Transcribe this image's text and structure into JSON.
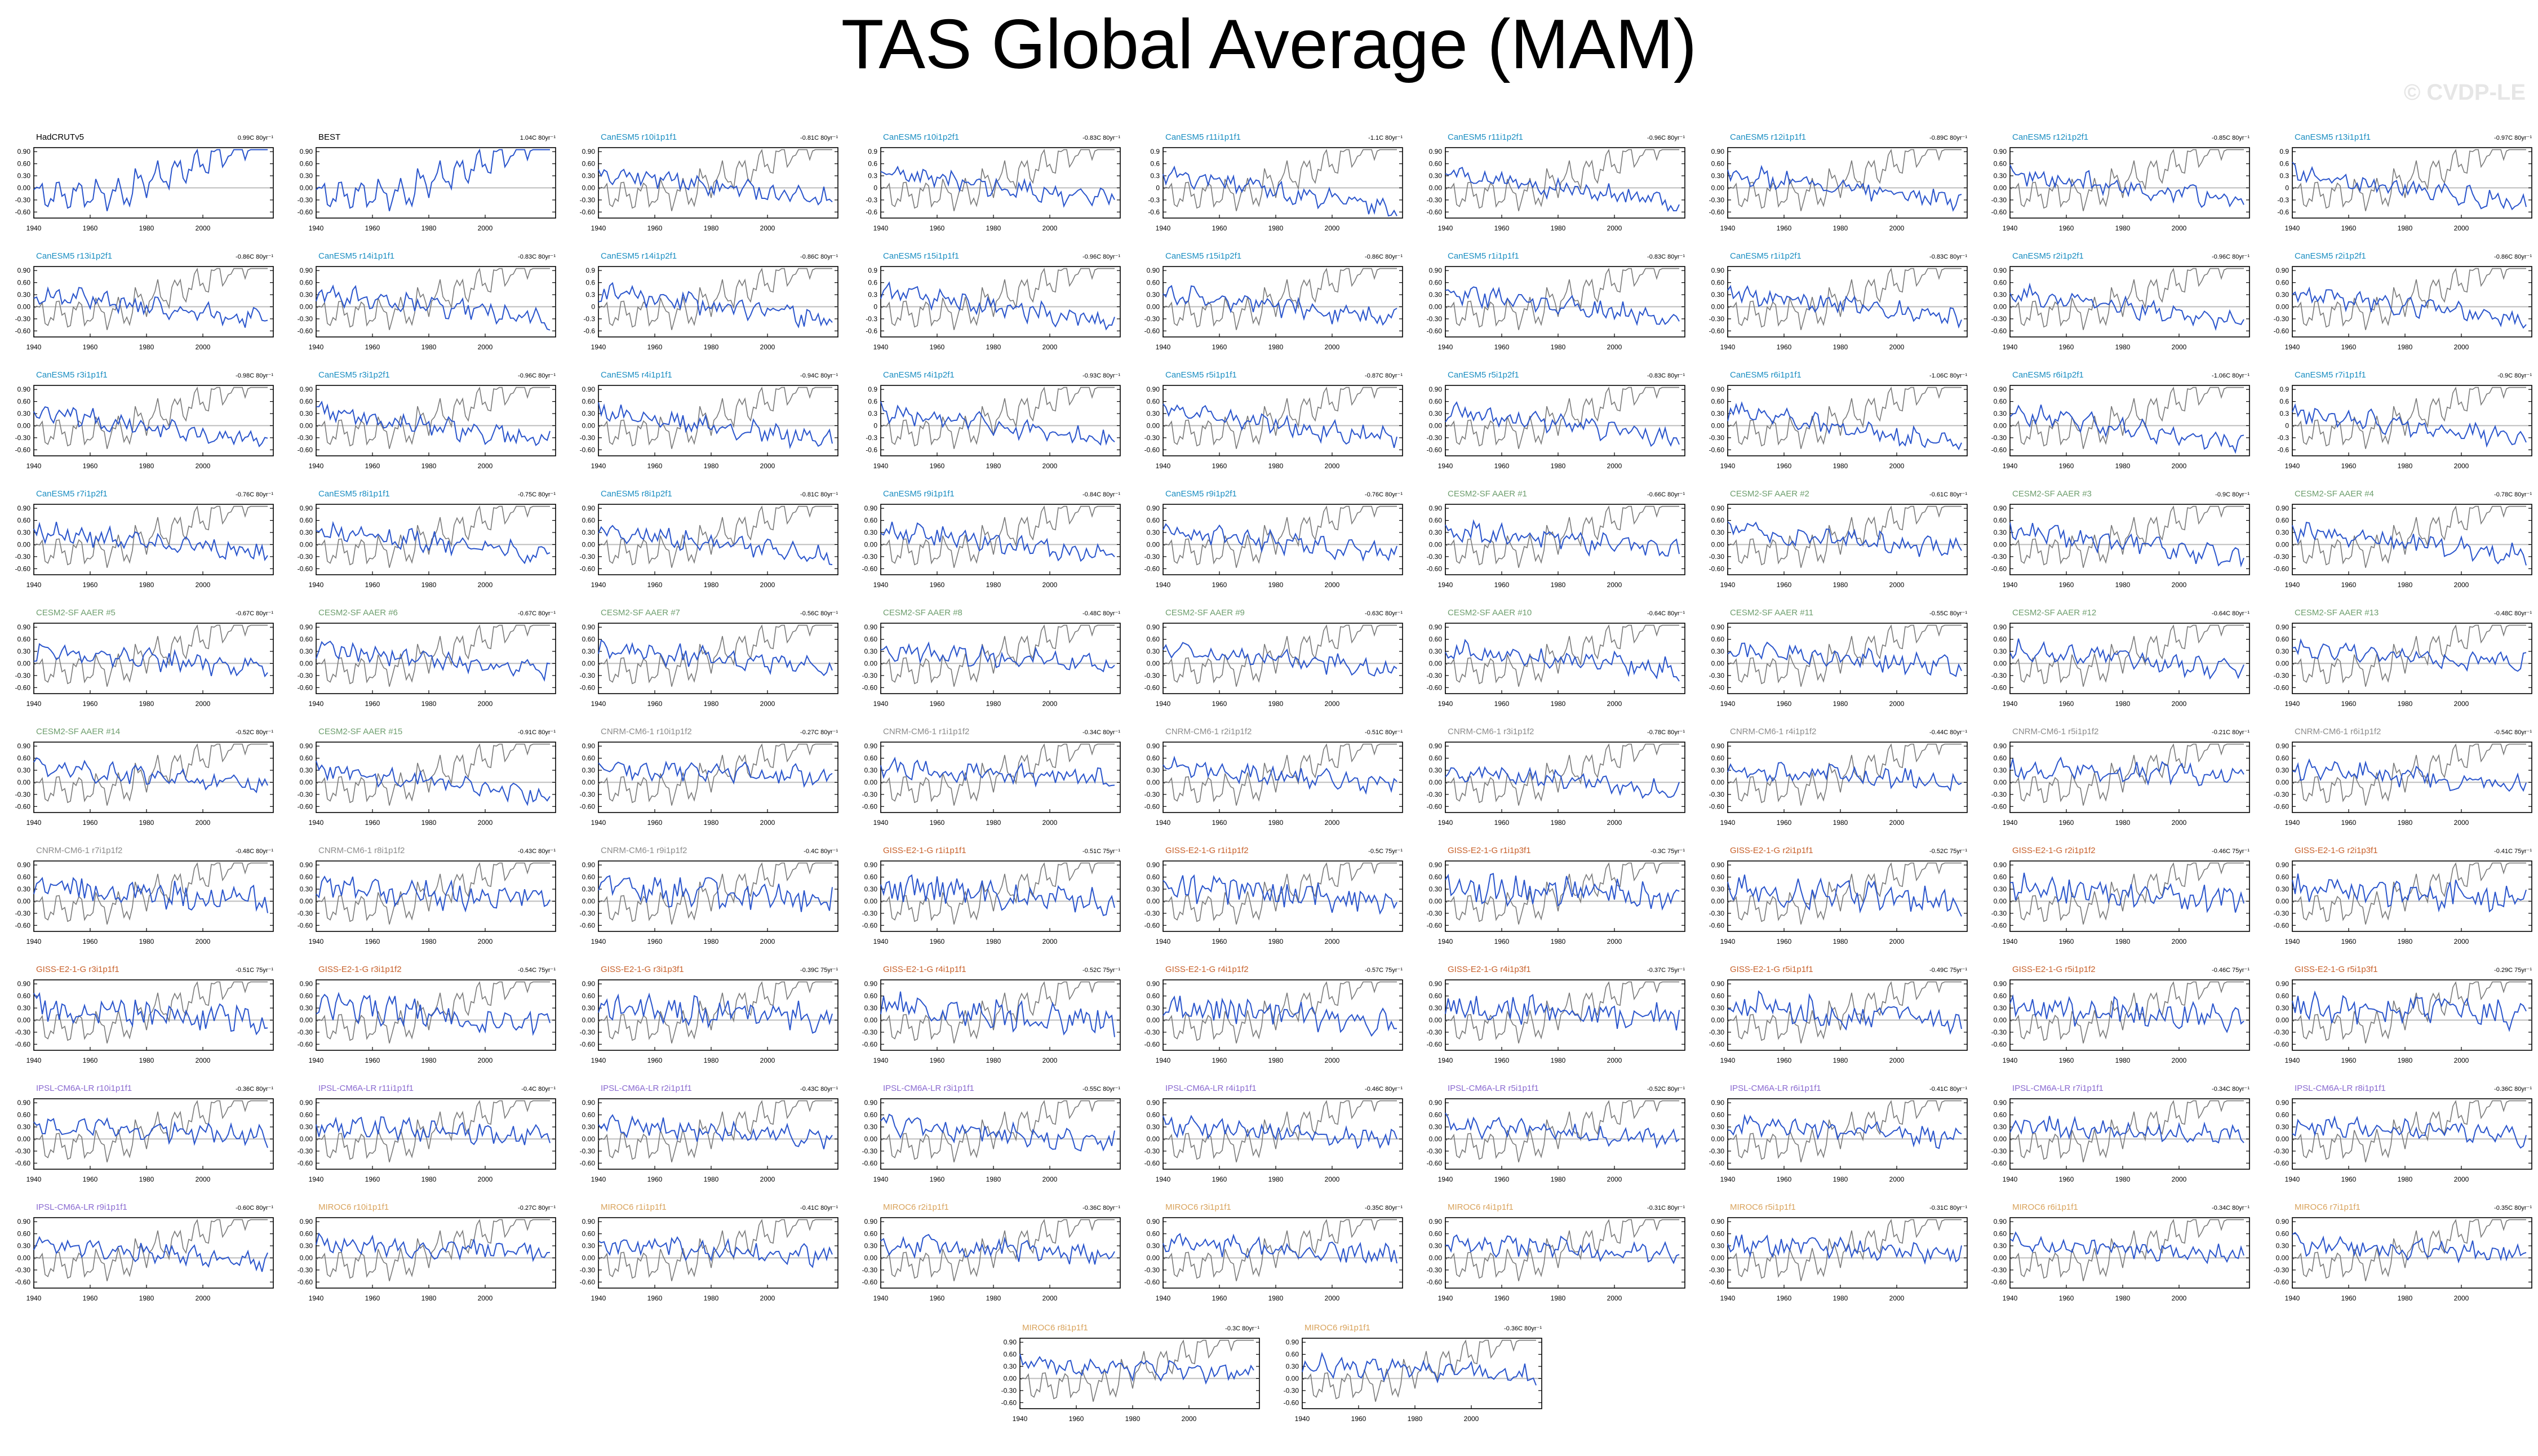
{
  "title": "TAS Global Average (MAM)",
  "watermark": "© CVDP-LE",
  "colors": {
    "background": "#ffffff",
    "model_line": "#2a55cc",
    "obs_line": "#7a7a7a",
    "zero_line": "#bdbdbd",
    "frame": "#000000"
  },
  "chart_data": {
    "type": "line",
    "chart_kind": "small-multiples time series",
    "xlim": [
      1940,
      2025
    ],
    "x_ticks": [
      1940,
      1960,
      1980,
      2000
    ],
    "y_ticks_default": [
      "0.90",
      "0.60",
      "0.30",
      "0.00",
      "-0.30",
      "-0.60"
    ],
    "y_ticks_alt": [
      "0.9",
      "0.6",
      "0.3",
      "0",
      "-0.3",
      "-0.6"
    ],
    "ylim": [
      -0.75,
      1.0
    ],
    "grid": false,
    "series": [
      "reference observed anomaly (gray)",
      "member anomaly (blue)"
    ],
    "panels": [
      {
        "label": "HadCRUTv5",
        "trend": "0.99C 80yr⁻¹",
        "color": "#000000",
        "obs_only": true
      },
      {
        "label": "BEST",
        "trend": "1.04C 80yr⁻¹",
        "color": "#000000",
        "obs_only": true
      },
      {
        "label": "CanESM5 r10i1p1f1",
        "trend": "-0.81C 80yr⁻¹",
        "color": "#1b8ec2"
      },
      {
        "label": "CanESM5 r10i1p2f1",
        "trend": "-0.83C 80yr⁻¹",
        "color": "#1b8ec2",
        "alt": true
      },
      {
        "label": "CanESM5 r11i1p1f1",
        "trend": "-1.1C 80yr⁻¹",
        "color": "#1b8ec2",
        "alt": true
      },
      {
        "label": "CanESM5 r11i1p2f1",
        "trend": "-0.96C 80yr⁻¹",
        "color": "#1b8ec2"
      },
      {
        "label": "CanESM5 r12i1p1f1",
        "trend": "-0.89C 80yr⁻¹",
        "color": "#1b8ec2"
      },
      {
        "label": "CanESM5 r12i1p2f1",
        "trend": "-0.85C 80yr⁻¹",
        "color": "#1b8ec2"
      },
      {
        "label": "CanESM5 r13i1p1f1",
        "trend": "-0.97C 80yr⁻¹",
        "color": "#1b8ec2",
        "alt": true
      },
      {
        "label": "CanESM5 r13i1p2f1",
        "trend": "-0.86C 80yr⁻¹",
        "color": "#1b8ec2"
      },
      {
        "label": "CanESM5 r14i1p1f1",
        "trend": "-0.83C 80yr⁻¹",
        "color": "#1b8ec2"
      },
      {
        "label": "CanESM5 r14i1p2f1",
        "trend": "-0.86C 80yr⁻¹",
        "color": "#1b8ec2",
        "alt": true
      },
      {
        "label": "CanESM5 r15i1p1f1",
        "trend": "-0.96C 80yr⁻¹",
        "color": "#1b8ec2",
        "alt": true
      },
      {
        "label": "CanESM5 r15i1p2f1",
        "trend": "-0.86C 80yr⁻¹",
        "color": "#1b8ec2"
      },
      {
        "label": "CanESM5 r1i1p1f1",
        "trend": "-0.83C 80yr⁻¹",
        "color": "#1b8ec2"
      },
      {
        "label": "CanESM5 r1i1p2f1",
        "trend": "-0.83C 80yr⁻¹",
        "color": "#1b8ec2"
      },
      {
        "label": "CanESM5 r2i1p2f1",
        "trend": "-0.96C 80yr⁻¹",
        "color": "#1b8ec2"
      },
      {
        "label": "CanESM5 r2i1p2f1",
        "trend": "-0.86C 80yr⁻¹",
        "color": "#1b8ec2"
      },
      {
        "label": "CanESM5 r3i1p1f1",
        "trend": "-0.98C 80yr⁻¹",
        "color": "#1b8ec2"
      },
      {
        "label": "CanESM5 r3i1p2f1",
        "trend": "-0.96C 80yr⁻¹",
        "color": "#1b8ec2"
      },
      {
        "label": "CanESM5 r4i1p1f1",
        "trend": "-0.94C 80yr⁻¹",
        "color": "#1b8ec2"
      },
      {
        "label": "CanESM5 r4i1p2f1",
        "trend": "-0.93C 80yr⁻¹",
        "color": "#1b8ec2",
        "alt": true
      },
      {
        "label": "CanESM5 r5i1p1f1",
        "trend": "-0.87C 80yr⁻¹",
        "color": "#1b8ec2"
      },
      {
        "label": "CanESM5 r5i1p2f1",
        "trend": "-0.83C 80yr⁻¹",
        "color": "#1b8ec2"
      },
      {
        "label": "CanESM5 r6i1p1f1",
        "trend": "-1.06C 80yr⁻¹",
        "color": "#1b8ec2"
      },
      {
        "label": "CanESM5 r6i1p2f1",
        "trend": "-1.06C 80yr⁻¹",
        "color": "#1b8ec2"
      },
      {
        "label": "CanESM5 r7i1p1f1",
        "trend": "-0.9C 80yr⁻¹",
        "color": "#1b8ec2",
        "alt": true
      },
      {
        "label": "CanESM5 r7i1p2f1",
        "trend": "-0.76C 80yr⁻¹",
        "color": "#1b8ec2"
      },
      {
        "label": "CanESM5 r8i1p1f1",
        "trend": "-0.75C 80yr⁻¹",
        "color": "#1b8ec2"
      },
      {
        "label": "CanESM5 r8i1p2f1",
        "trend": "-0.81C 80yr⁻¹",
        "color": "#1b8ec2"
      },
      {
        "label": "CanESM5 r9i1p1f1",
        "trend": "-0.84C 80yr⁻¹",
        "color": "#1b8ec2"
      },
      {
        "label": "CanESM5 r9i1p2f1",
        "trend": "-0.76C 80yr⁻¹",
        "color": "#1b8ec2"
      },
      {
        "label": "CESM2-SF AAER #1",
        "trend": "-0.66C 80yr⁻¹",
        "color": "#6e9e6e"
      },
      {
        "label": "CESM2-SF AAER #2",
        "trend": "-0.61C 80yr⁻¹",
        "color": "#6e9e6e"
      },
      {
        "label": "CESM2-SF AAER #3",
        "trend": "-0.9C 80yr⁻¹",
        "color": "#6e9e6e"
      },
      {
        "label": "CESM2-SF AAER #4",
        "trend": "-0.78C 80yr⁻¹",
        "color": "#6e9e6e"
      },
      {
        "label": "CESM2-SF AAER #5",
        "trend": "-0.67C 80yr⁻¹",
        "color": "#6e9e6e"
      },
      {
        "label": "CESM2-SF AAER #6",
        "trend": "-0.67C 80yr⁻¹",
        "color": "#6e9e6e"
      },
      {
        "label": "CESM2-SF AAER #7",
        "trend": "-0.56C 80yr⁻¹",
        "color": "#6e9e6e"
      },
      {
        "label": "CESM2-SF AAER #8",
        "trend": "-0.48C 80yr⁻¹",
        "color": "#6e9e6e"
      },
      {
        "label": "CESM2-SF AAER #9",
        "trend": "-0.63C 80yr⁻¹",
        "color": "#6e9e6e"
      },
      {
        "label": "CESM2-SF AAER #10",
        "trend": "-0.64C 80yr⁻¹",
        "color": "#6e9e6e"
      },
      {
        "label": "CESM2-SF AAER #11",
        "trend": "-0.55C 80yr⁻¹",
        "color": "#6e9e6e"
      },
      {
        "label": "CESM2-SF AAER #12",
        "trend": "-0.64C 80yr⁻¹",
        "color": "#6e9e6e"
      },
      {
        "label": "CESM2-SF AAER #13",
        "trend": "-0.48C 80yr⁻¹",
        "color": "#6e9e6e"
      },
      {
        "label": "CESM2-SF AAER #14",
        "trend": "-0.52C 80yr⁻¹",
        "color": "#6e9e6e"
      },
      {
        "label": "CESM2-SF AAER #15",
        "trend": "-0.91C 80yr⁻¹",
        "color": "#6e9e6e"
      },
      {
        "label": "CNRM-CM6-1 r10i1p1f2",
        "trend": "-0.27C 80yr⁻¹",
        "color": "#8c8c8c"
      },
      {
        "label": "CNRM-CM6-1 r1i1p1f2",
        "trend": "-0.34C 80yr⁻¹",
        "color": "#8c8c8c"
      },
      {
        "label": "CNRM-CM6-1 r2i1p1f2",
        "trend": "-0.51C 80yr⁻¹",
        "color": "#8c8c8c"
      },
      {
        "label": "CNRM-CM6-1 r3i1p1f2",
        "trend": "-0.78C 80yr⁻¹",
        "color": "#8c8c8c"
      },
      {
        "label": "CNRM-CM6-1 r4i1p1f2",
        "trend": "-0.44C 80yr⁻¹",
        "color": "#8c8c8c"
      },
      {
        "label": "CNRM-CM6-1 r5i1p1f2",
        "trend": "-0.21C 80yr⁻¹",
        "color": "#8c8c8c"
      },
      {
        "label": "CNRM-CM6-1 r6i1p1f2",
        "trend": "-0.54C 80yr⁻¹",
        "color": "#8c8c8c"
      },
      {
        "label": "CNRM-CM6-1 r7i1p1f2",
        "trend": "-0.48C 80yr⁻¹",
        "color": "#8c8c8c"
      },
      {
        "label": "CNRM-CM6-1 r8i1p1f2",
        "trend": "-0.43C 80yr⁻¹",
        "color": "#8c8c8c"
      },
      {
        "label": "CNRM-CM6-1 r9i1p1f2",
        "trend": "-0.4C 80yr⁻¹",
        "color": "#8c8c8c"
      },
      {
        "label": "GISS-E2-1-G r1i1p1f1",
        "trend": "-0.51C 75yr⁻¹",
        "color": "#c8602a"
      },
      {
        "label": "GISS-E2-1-G r1i1p1f2",
        "trend": "-0.5C 75yr⁻¹",
        "color": "#c8602a"
      },
      {
        "label": "GISS-E2-1-G r1i1p3f1",
        "trend": "-0.3C 75yr⁻¹",
        "color": "#c8602a"
      },
      {
        "label": "GISS-E2-1-G r2i1p1f1",
        "trend": "-0.52C 75yr⁻¹",
        "color": "#c8602a"
      },
      {
        "label": "GISS-E2-1-G r2i1p1f2",
        "trend": "-0.46C 75yr⁻¹",
        "color": "#c8602a"
      },
      {
        "label": "GISS-E2-1-G r2i1p3f1",
        "trend": "-0.41C 75yr⁻¹",
        "color": "#c8602a"
      },
      {
        "label": "GISS-E2-1-G r3i1p1f1",
        "trend": "-0.51C 75yr⁻¹",
        "color": "#c8602a"
      },
      {
        "label": "GISS-E2-1-G r3i1p1f2",
        "trend": "-0.54C 75yr⁻¹",
        "color": "#c8602a"
      },
      {
        "label": "GISS-E2-1-G r3i1p3f1",
        "trend": "-0.39C 75yr⁻¹",
        "color": "#c8602a"
      },
      {
        "label": "GISS-E2-1-G r4i1p1f1",
        "trend": "-0.52C 75yr⁻¹",
        "color": "#c8602a"
      },
      {
        "label": "GISS-E2-1-G r4i1p1f2",
        "trend": "-0.57C 75yr⁻¹",
        "color": "#c8602a"
      },
      {
        "label": "GISS-E2-1-G r4i1p3f1",
        "trend": "-0.37C 75yr⁻¹",
        "color": "#c8602a"
      },
      {
        "label": "GISS-E2-1-G r5i1p1f1",
        "trend": "-0.49C 75yr⁻¹",
        "color": "#c8602a"
      },
      {
        "label": "GISS-E2-1-G r5i1p1f2",
        "trend": "-0.46C 75yr⁻¹",
        "color": "#c8602a"
      },
      {
        "label": "GISS-E2-1-G r5i1p3f1",
        "trend": "-0.29C 75yr⁻¹",
        "color": "#c8602a"
      },
      {
        "label": "IPSL-CM6A-LR r10i1p1f1",
        "trend": "-0.36C 80yr⁻¹",
        "color": "#8a6ad0"
      },
      {
        "label": "IPSL-CM6A-LR r11i1p1f1",
        "trend": "-0.4C 80yr⁻¹",
        "color": "#8a6ad0"
      },
      {
        "label": "IPSL-CM6A-LR r2i1p1f1",
        "trend": "-0.43C 80yr⁻¹",
        "color": "#8a6ad0"
      },
      {
        "label": "IPSL-CM6A-LR r3i1p1f1",
        "trend": "-0.55C 80yr⁻¹",
        "color": "#8a6ad0"
      },
      {
        "label": "IPSL-CM6A-LR r4i1p1f1",
        "trend": "-0.46C 80yr⁻¹",
        "color": "#8a6ad0"
      },
      {
        "label": "IPSL-CM6A-LR r5i1p1f1",
        "trend": "-0.52C 80yr⁻¹",
        "color": "#8a6ad0"
      },
      {
        "label": "IPSL-CM6A-LR r6i1p1f1",
        "trend": "-0.41C 80yr⁻¹",
        "color": "#8a6ad0"
      },
      {
        "label": "IPSL-CM6A-LR r7i1p1f1",
        "trend": "-0.34C 80yr⁻¹",
        "color": "#8a6ad0"
      },
      {
        "label": "IPSL-CM6A-LR r8i1p1f1",
        "trend": "-0.36C 80yr⁻¹",
        "color": "#8a6ad0"
      },
      {
        "label": "IPSL-CM6A-LR r9i1p1f1",
        "trend": "-0.60C 80yr⁻¹",
        "color": "#8a6ad0"
      },
      {
        "label": "MIROC6 r10i1p1f1",
        "trend": "-0.27C 80yr⁻¹",
        "color": "#d9a35c"
      },
      {
        "label": "MIROC6 r1i1p1f1",
        "trend": "-0.41C 80yr⁻¹",
        "color": "#d9a35c"
      },
      {
        "label": "MIROC6 r2i1p1f1",
        "trend": "-0.36C 80yr⁻¹",
        "color": "#d9a35c"
      },
      {
        "label": "MIROC6 r3i1p1f1",
        "trend": "-0.35C 80yr⁻¹",
        "color": "#d9a35c"
      },
      {
        "label": "MIROC6 r4i1p1f1",
        "trend": "-0.31C 80yr⁻¹",
        "color": "#d9a35c"
      },
      {
        "label": "MIROC6 r5i1p1f1",
        "trend": "-0.31C 80yr⁻¹",
        "color": "#d9a35c"
      },
      {
        "label": "MIROC6 r6i1p1f1",
        "trend": "-0.34C 80yr⁻¹",
        "color": "#d9a35c"
      },
      {
        "label": "MIROC6 r7i1p1f1",
        "trend": "-0.35C 80yr⁻¹",
        "color": "#d9a35c"
      },
      {
        "label": "MIROC6 r8i1p1f1",
        "trend": "-0.3C 80yr⁻¹",
        "color": "#d9a35c"
      },
      {
        "label": "MIROC6 r9i1p1f1",
        "trend": "-0.36C 80yr⁻¹",
        "color": "#d9a35c"
      }
    ]
  }
}
